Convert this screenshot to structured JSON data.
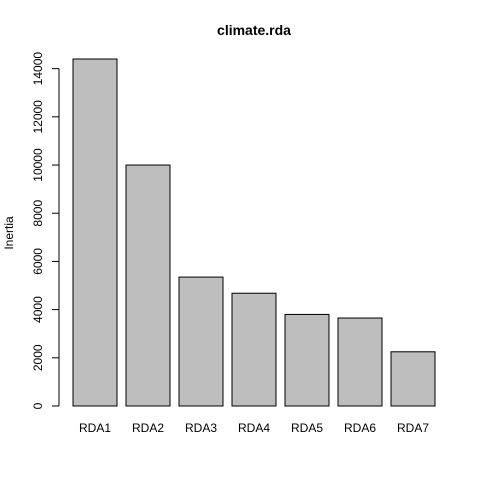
{
  "chart_data": {
    "type": "bar",
    "title": "climate.rda",
    "xlabel": "",
    "ylabel": "Inertia",
    "categories": [
      "RDA1",
      "RDA2",
      "RDA3",
      "RDA4",
      "RDA5",
      "RDA6",
      "RDA7"
    ],
    "values": [
      14400,
      10000,
      5350,
      4680,
      3800,
      3650,
      2250
    ],
    "ylim": [
      0,
      14400
    ],
    "yticks": [
      0,
      2000,
      4000,
      6000,
      8000,
      10000,
      12000,
      14000
    ],
    "ytick_labels": [
      "0",
      "2000",
      "4000",
      "6000",
      "8000",
      "10000",
      "12000",
      "14000"
    ],
    "grid": false,
    "legend": "none",
    "colors": {
      "bar_fill": "#bebebe",
      "bar_stroke": "#000000"
    }
  }
}
